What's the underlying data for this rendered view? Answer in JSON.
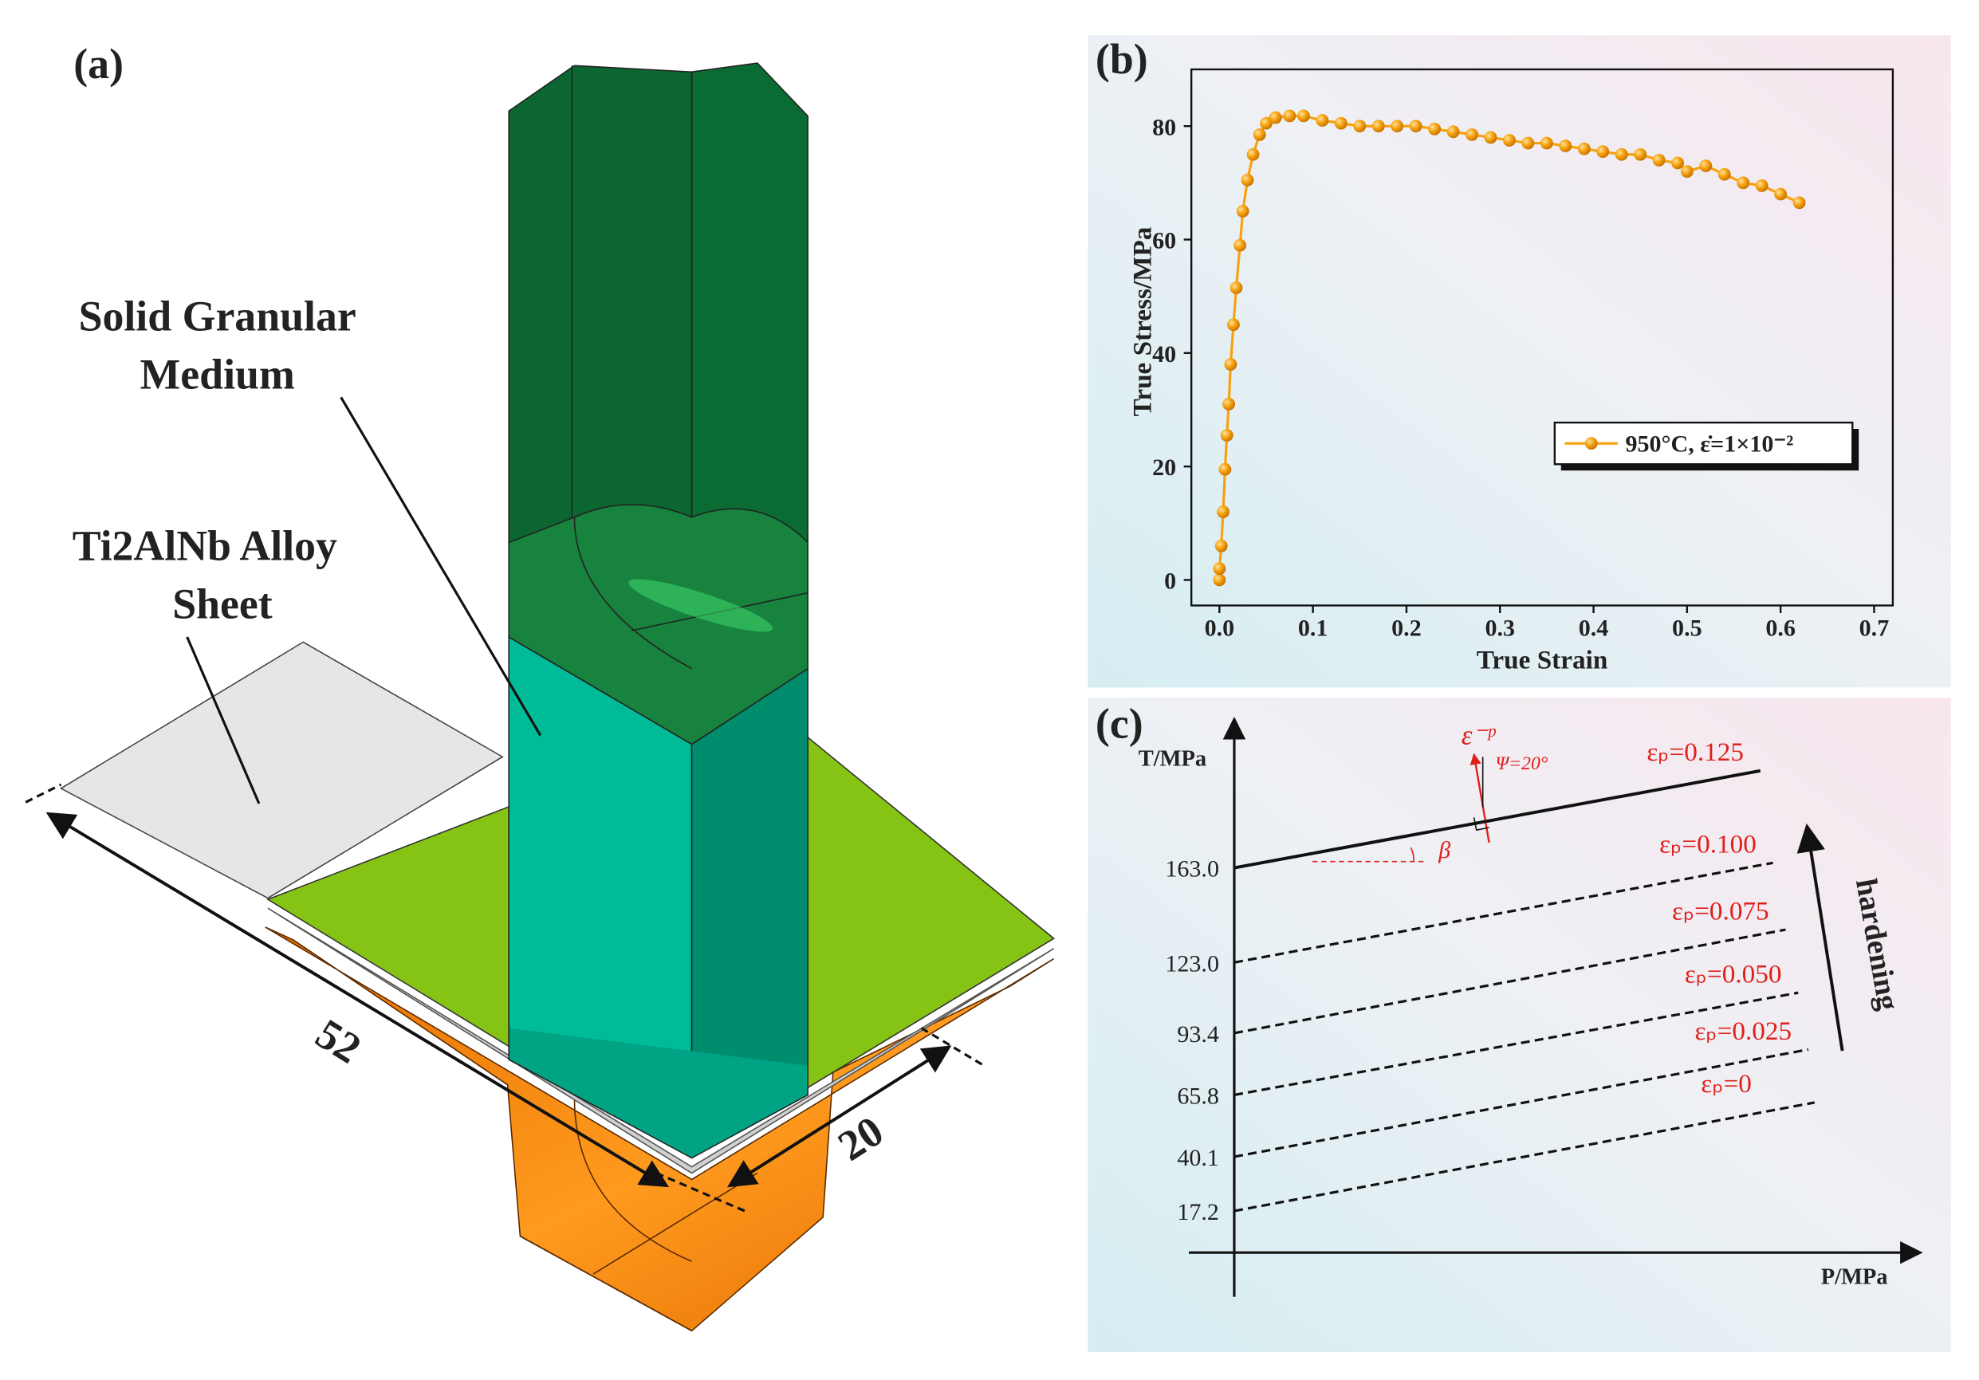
{
  "panel_a": {
    "label": "(a)",
    "medium_label": [
      "Solid Granular",
      "Medium"
    ],
    "sheet_label": [
      "Ti2AlNb Alloy",
      "Sheet"
    ],
    "dim_long": "52",
    "dim_short": "20"
  },
  "chart_data": {
    "type": "line",
    "panel_label": "(b)",
    "x_label": "True Strain",
    "y_label": "True Stress/MPa",
    "xlim": [
      -0.03,
      0.72
    ],
    "ylim": [
      -4.5,
      90
    ],
    "xticks": [
      {
        "value": 0,
        "label": "0.0"
      },
      0.1,
      0.2,
      0.3,
      0.4,
      0.5,
      0.6,
      0.7
    ],
    "yticks": [
      0,
      20,
      40,
      60,
      80
    ],
    "legend": "center-right",
    "series": [
      {
        "name": "950°C, ε̇=1×10⁻²",
        "color": "#f7a10c",
        "x": [
          0.0,
          0.0,
          0.002,
          0.004,
          0.006,
          0.008,
          0.01,
          0.012,
          0.015,
          0.018,
          0.022,
          0.025,
          0.03,
          0.036,
          0.043,
          0.05,
          0.06,
          0.075,
          0.09,
          0.11,
          0.13,
          0.15,
          0.17,
          0.19,
          0.21,
          0.23,
          0.25,
          0.27,
          0.29,
          0.31,
          0.33,
          0.35,
          0.37,
          0.39,
          0.41,
          0.43,
          0.45,
          0.47,
          0.49,
          0.5,
          0.52,
          0.54,
          0.56,
          0.58,
          0.6,
          0.62
        ],
        "values": [
          0,
          2,
          6,
          12,
          19.5,
          25.5,
          31,
          38,
          45,
          51.5,
          59,
          65,
          70.5,
          75,
          78.5,
          80.5,
          81.5,
          81.8,
          81.8,
          81,
          80.5,
          80,
          80,
          80,
          80,
          79.5,
          79,
          78.5,
          78,
          77.5,
          77,
          77,
          76.5,
          76,
          75.5,
          75,
          75,
          74,
          73.5,
          72,
          73,
          71.5,
          70,
          69.5,
          68,
          66.5
        ]
      }
    ]
  },
  "panel_c": {
    "label": "(c)",
    "y_axis": "T/MPa",
    "x_axis": "P/MPa",
    "intercepts": [
      "163.0",
      "123.0",
      "93.4",
      "65.8",
      "40.1",
      "17.2"
    ],
    "lines": [
      "εₚ=0.125",
      "εₚ=0.100",
      "εₚ=0.075",
      "εₚ=0.050",
      "εₚ=0.025",
      "εₚ=0"
    ],
    "flow": "ε⁻ᵖ",
    "psi": "Ψ=20°",
    "beta": "β",
    "hardening": "hardening"
  }
}
